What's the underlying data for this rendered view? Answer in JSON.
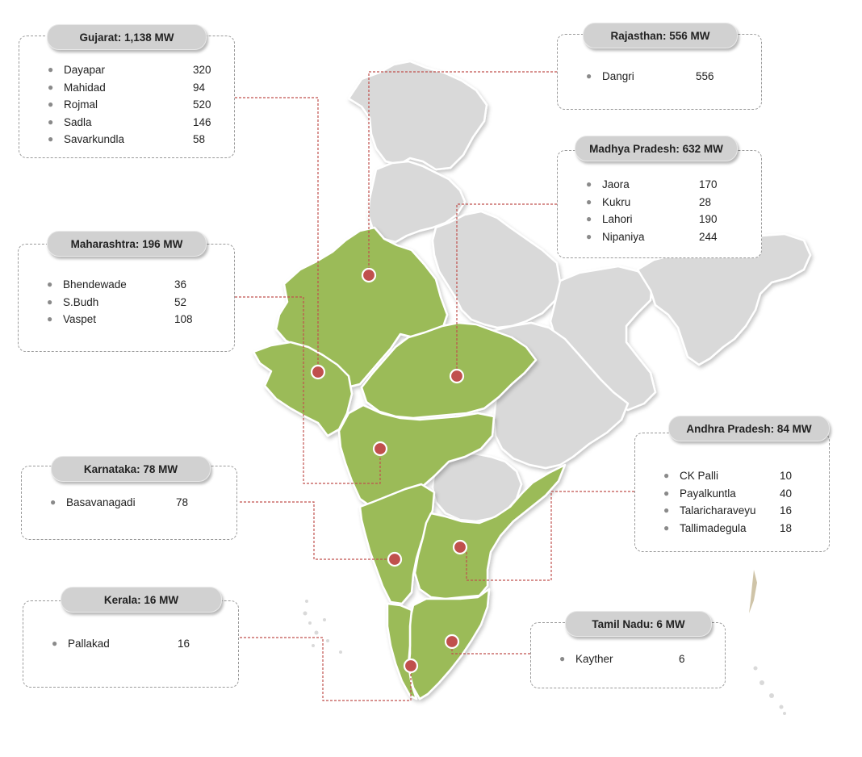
{
  "colors": {
    "highlight_state": "#9bbb59",
    "other_state": "#d9d9d9",
    "marker": "#c0504d",
    "connector": "#c0504d",
    "pill": "#d1d1d1"
  },
  "regions": [
    {
      "key": "gujarat",
      "title": "Gujarat: 1,138 MW",
      "sites": [
        {
          "name": "Dayapar",
          "mw": "320"
        },
        {
          "name": "Mahidad",
          "mw": "94"
        },
        {
          "name": "Rojmal",
          "mw": "520"
        },
        {
          "name": "Sadla",
          "mw": "146"
        },
        {
          "name": "Savarkundla",
          "mw": "58"
        }
      ]
    },
    {
      "key": "rajasthan",
      "title": "Rajasthan: 556 MW",
      "sites": [
        {
          "name": "Dangri",
          "mw": "556"
        }
      ]
    },
    {
      "key": "madhya-pradesh",
      "title": "Madhya Pradesh: 632 MW",
      "sites": [
        {
          "name": "Jaora",
          "mw": "170"
        },
        {
          "name": "Kukru",
          "mw": "28"
        },
        {
          "name": "Lahori",
          "mw": "190"
        },
        {
          "name": "Nipaniya",
          "mw": "244"
        }
      ]
    },
    {
      "key": "maharashtra",
      "title": "Maharashtra: 196 MW",
      "sites": [
        {
          "name": "Bhendewade",
          "mw": "36"
        },
        {
          "name": "S.Budh",
          "mw": "52"
        },
        {
          "name": "Vaspet",
          "mw": "108"
        }
      ]
    },
    {
      "key": "andhra-pradesh",
      "title": "Andhra Pradesh: 84 MW",
      "sites": [
        {
          "name": "CK Palli",
          "mw": "10"
        },
        {
          "name": "Payalkuntla",
          "mw": "40"
        },
        {
          "name": "Talaricharaveyu",
          "mw": "16"
        },
        {
          "name": "Tallimadegula",
          "mw": "18"
        }
      ]
    },
    {
      "key": "karnataka",
      "title": "Karnataka: 78 MW",
      "sites": [
        {
          "name": "Basavanagadi",
          "mw": "78"
        }
      ]
    },
    {
      "key": "kerala",
      "title": "Kerala: 16 MW",
      "sites": [
        {
          "name": "Pallakad",
          "mw": "16"
        }
      ]
    },
    {
      "key": "tamil-nadu",
      "title": "Tamil Nadu: 6 MW",
      "sites": [
        {
          "name": "Kayther",
          "mw": "6"
        }
      ]
    }
  ]
}
